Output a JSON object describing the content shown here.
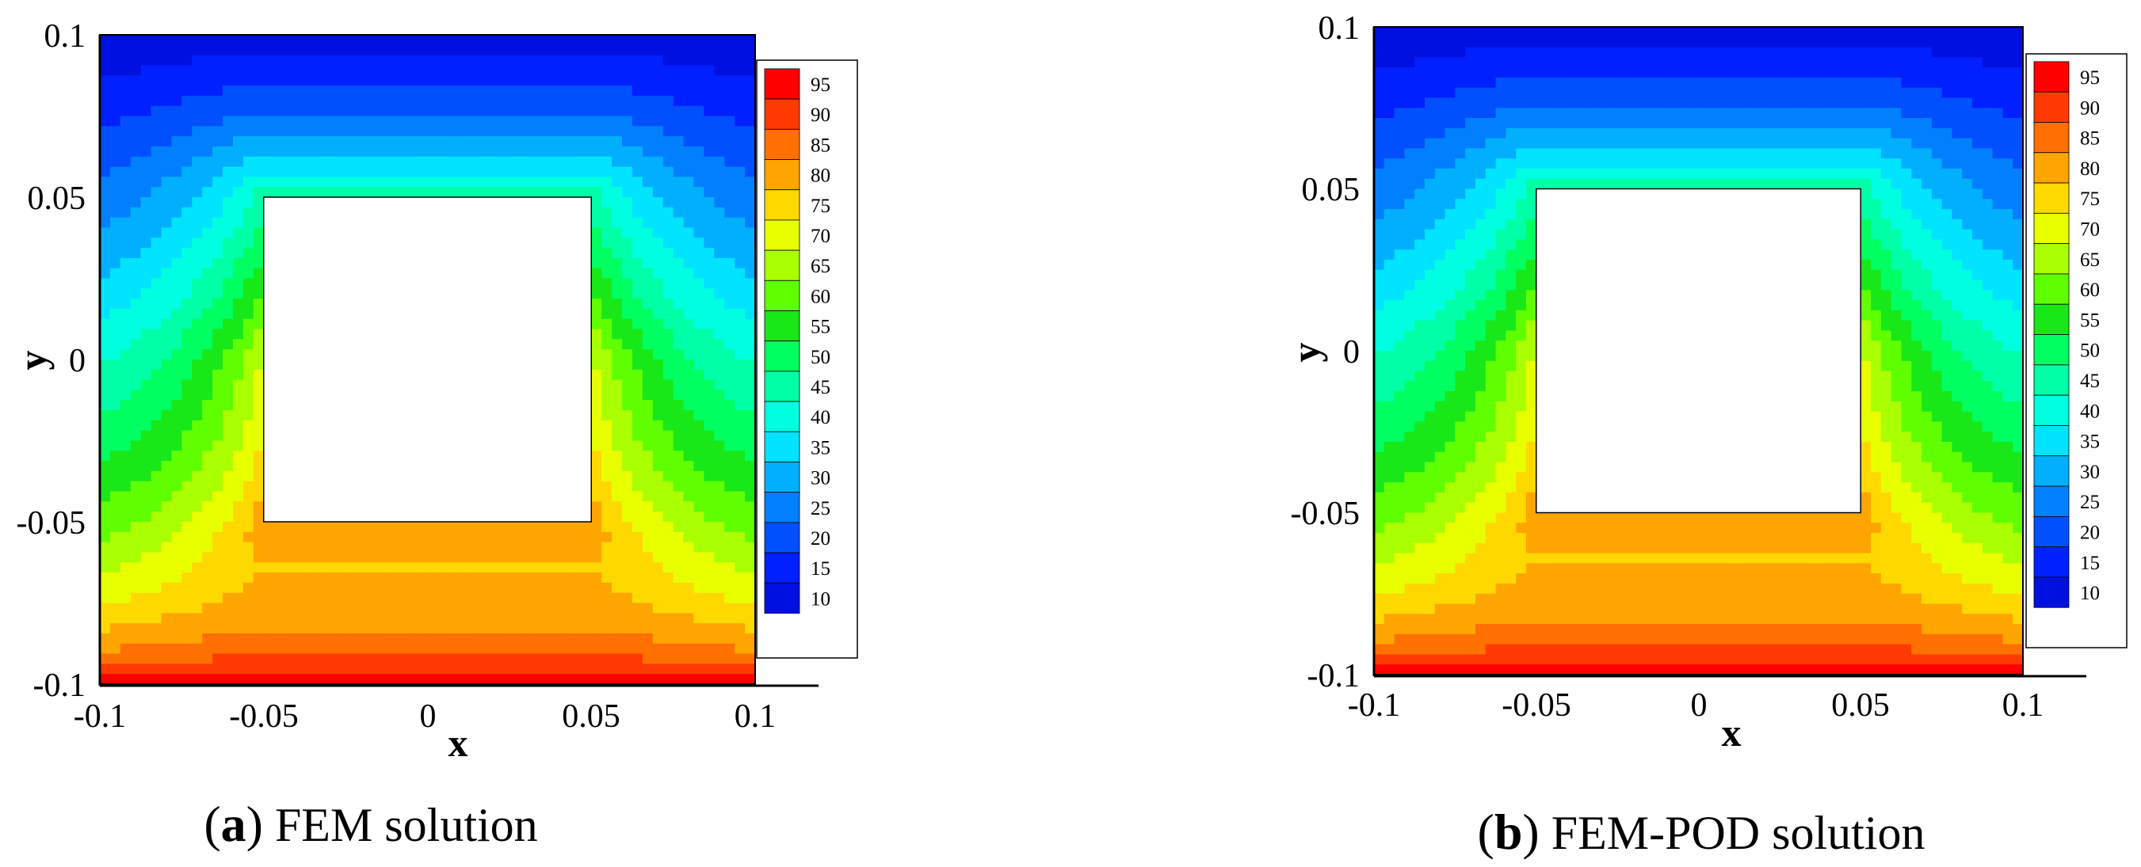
{
  "chart_data": [
    {
      "type": "contour",
      "panel_letter": "a",
      "caption": "FEM solution",
      "xlabel": "x",
      "ylabel": "y",
      "xlim": [
        -0.1,
        0.1
      ],
      "ylim": [
        -0.1,
        0.1
      ],
      "xticks": [
        "-0.1",
        "-0.05",
        "0",
        "0.05",
        "0.1"
      ],
      "yticks": [
        "0.1",
        "0.05",
        "0",
        "-0.05",
        "-0.1"
      ],
      "obstacle": {
        "x": [
          -0.05,
          0.05
        ],
        "y": [
          -0.05,
          0.05
        ]
      },
      "levels": [
        95,
        90,
        85,
        80,
        75,
        70,
        65,
        60,
        55,
        50,
        45,
        40,
        35,
        30,
        25,
        20,
        15,
        10
      ]
    },
    {
      "type": "contour",
      "panel_letter": "b",
      "caption": "FEM-POD solution",
      "xlabel": "x",
      "ylabel": "y",
      "xlim": [
        -0.1,
        0.1
      ],
      "ylim": [
        -0.1,
        0.1
      ],
      "xticks": [
        "-0.1",
        "-0.05",
        "0",
        "0.05",
        "0.1"
      ],
      "yticks": [
        "0.1",
        "0.05",
        "0",
        "-0.05",
        "-0.1"
      ],
      "obstacle": {
        "x": [
          -0.05,
          0.05
        ],
        "y": [
          -0.05,
          0.05
        ]
      },
      "levels": [
        95,
        90,
        85,
        80,
        75,
        70,
        65,
        60,
        55,
        50,
        45,
        40,
        35,
        30,
        25,
        20,
        15,
        10
      ]
    }
  ],
  "colors": {
    "level_colors": [
      "#ff0000",
      "#ff3a00",
      "#ff7000",
      "#ffa500",
      "#ffd800",
      "#e8ff00",
      "#aaff00",
      "#60ff00",
      "#18e818",
      "#00ff60",
      "#00ffa6",
      "#00ffe0",
      "#00e4ff",
      "#00b0ff",
      "#0080ff",
      "#0050ff",
      "#0020ff",
      "#0010e0"
    ]
  }
}
